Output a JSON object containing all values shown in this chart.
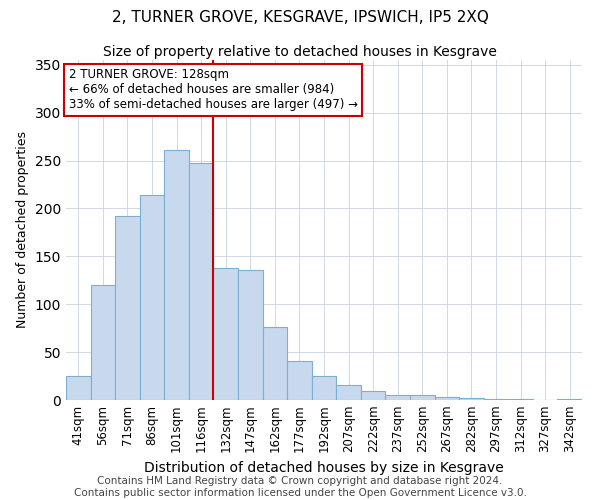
{
  "title": "2, TURNER GROVE, KESGRAVE, IPSWICH, IP5 2XQ",
  "subtitle": "Size of property relative to detached houses in Kesgrave",
  "xlabel": "Distribution of detached houses by size in Kesgrave",
  "ylabel": "Number of detached properties",
  "bar_labels": [
    "41sqm",
    "56sqm",
    "71sqm",
    "86sqm",
    "101sqm",
    "116sqm",
    "132sqm",
    "147sqm",
    "162sqm",
    "177sqm",
    "192sqm",
    "207sqm",
    "222sqm",
    "237sqm",
    "252sqm",
    "267sqm",
    "282sqm",
    "297sqm",
    "312sqm",
    "327sqm",
    "342sqm"
  ],
  "bar_values": [
    25,
    120,
    192,
    214,
    261,
    247,
    138,
    136,
    76,
    41,
    25,
    16,
    9,
    5,
    5,
    3,
    2,
    1,
    1,
    0,
    1
  ],
  "bar_color": "#c8d9ee",
  "bar_edgecolor": "#7bafd4",
  "vline_index": 6,
  "vline_color": "#cc0000",
  "annotation_title": "2 TURNER GROVE: 128sqm",
  "annotation_line1": "← 66% of detached houses are smaller (984)",
  "annotation_line2": "33% of semi-detached houses are larger (497) →",
  "annotation_box_edgecolor": "#cc0000",
  "annotation_box_facecolor": "#ffffff",
  "ylim": [
    0,
    355
  ],
  "footer1": "Contains HM Land Registry data © Crown copyright and database right 2024.",
  "footer2": "Contains public sector information licensed under the Open Government Licence v3.0.",
  "title_fontsize": 11,
  "subtitle_fontsize": 10,
  "xlabel_fontsize": 10,
  "ylabel_fontsize": 9,
  "tick_fontsize": 8.5,
  "footer_fontsize": 7.5
}
